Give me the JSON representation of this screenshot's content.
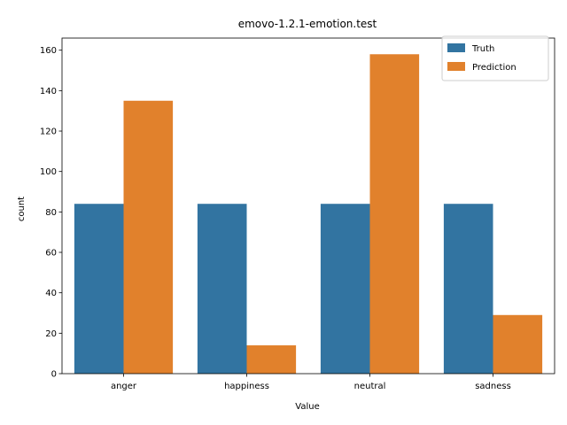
{
  "chart_data": {
    "type": "bar",
    "title": "emovo-1.2.1-emotion.test",
    "xlabel": "Value",
    "ylabel": "count",
    "categories": [
      "anger",
      "happiness",
      "neutral",
      "sadness"
    ],
    "series": [
      {
        "name": "Truth",
        "color": "#3274a1",
        "values": [
          84,
          84,
          84,
          84
        ]
      },
      {
        "name": "Prediction",
        "color": "#e1812c",
        "values": [
          135,
          14,
          158,
          29
        ]
      }
    ],
    "ylim": [
      0,
      166
    ],
    "yticks": [
      0,
      20,
      40,
      60,
      80,
      100,
      120,
      140,
      160
    ],
    "grid": false,
    "legend": "top-right"
  }
}
